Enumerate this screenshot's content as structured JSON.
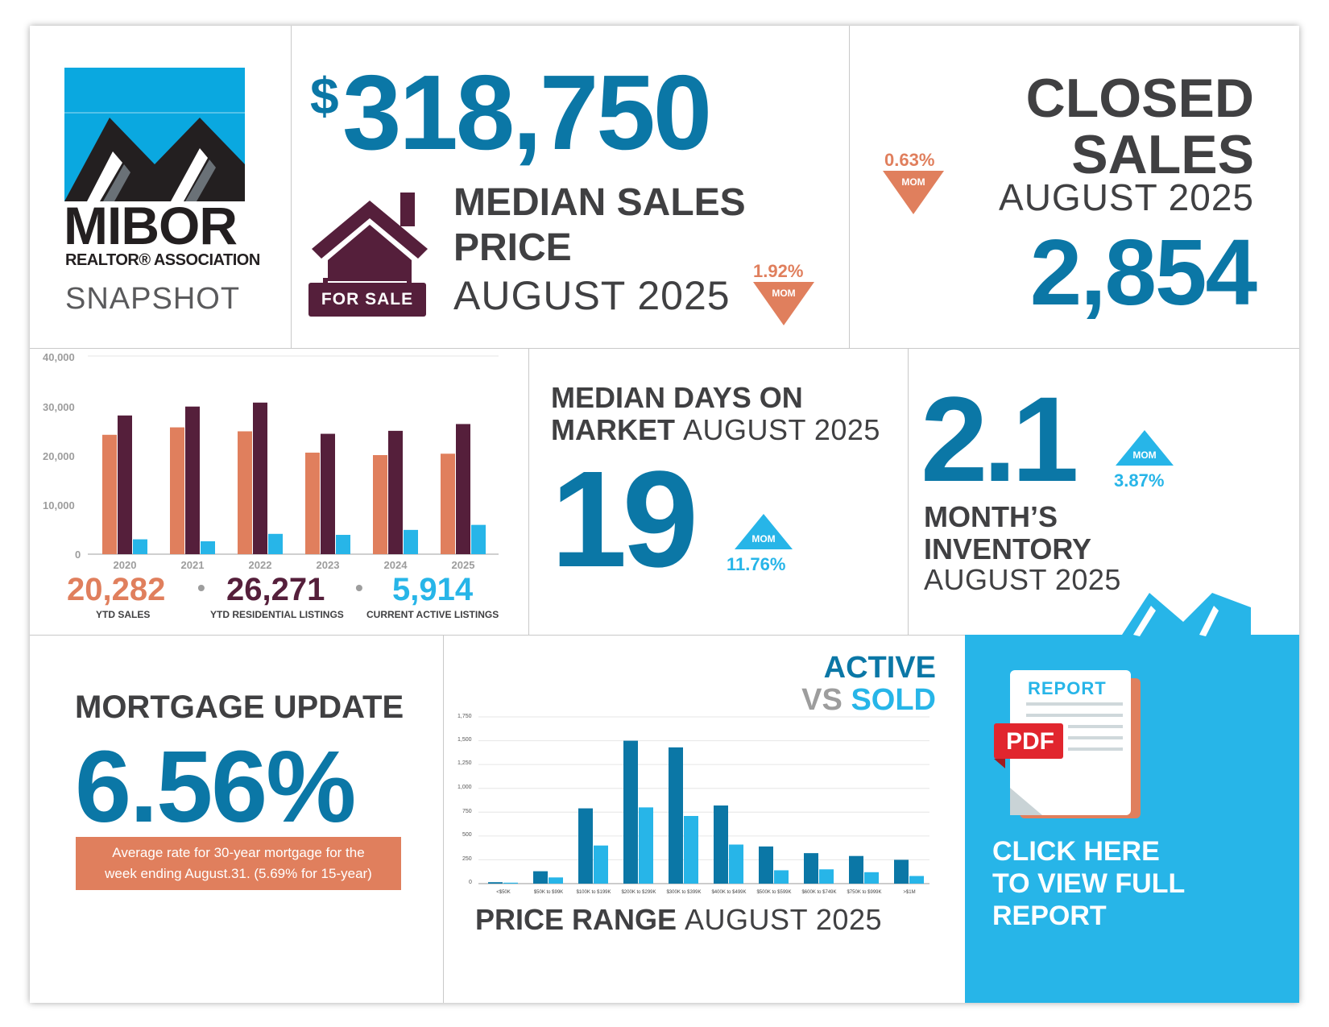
{
  "brand": {
    "logo_word": "MIBOR",
    "logo_sub": "REALTOR® ASSOCIATION",
    "snapshot_label": "SNAPSHOT"
  },
  "median_price": {
    "dollar_sign": "$",
    "value": "318,750",
    "title_line1": "MEDIAN SALES",
    "title_line2": "PRICE",
    "period": "AUGUST 2025",
    "sign_label": "FOR SALE",
    "change": "1.92%",
    "mom": "MOM",
    "direction": "down"
  },
  "closed_sales": {
    "title_line1": "CLOSED",
    "title_line2": "SALES",
    "period": "AUGUST 2025",
    "value": "2,854",
    "change": "0.63%",
    "mom": "MOM",
    "direction": "down"
  },
  "ytd_chart": {
    "y_ticks": [
      "40,000",
      "30,000",
      "20,000",
      "10,000",
      "0"
    ],
    "summary": [
      {
        "value": "20,282",
        "label": "YTD SALES"
      },
      {
        "value": "26,271",
        "label": "YTD RESIDENTIAL LISTINGS"
      },
      {
        "value": "5,914",
        "label": "CURRENT ACTIVE LISTINGS"
      }
    ],
    "separator": "•"
  },
  "days_on_market": {
    "title_line1": "MEDIAN DAYS ON",
    "title_line2_bold": "MARKET",
    "period": "AUGUST 2025",
    "value": "19",
    "change": "11.76%",
    "mom": "MOM",
    "direction": "up"
  },
  "inventory": {
    "value": "2.1",
    "title_line1": "MONTH’S",
    "title_line2": "INVENTORY",
    "period": "AUGUST 2025",
    "change": "3.87%",
    "mom": "MOM",
    "direction": "up"
  },
  "mortgage": {
    "title": "MORTGAGE UPDATE",
    "rate": "6.56%",
    "note_line1": "Average rate for 30-year mortgage for the",
    "note_line2": "week ending August.31. (5.69% for 15-year)"
  },
  "price_range": {
    "title_line1": "ACTIVE",
    "title_vs": "VS",
    "title_sold": "SOLD",
    "footer_bold": "PRICE RANGE",
    "footer_period": "AUGUST 2025",
    "y_ticks": [
      "1,750",
      "1,500",
      "1,250",
      "1,000",
      "750",
      "500",
      "250",
      "0"
    ]
  },
  "report_cta": {
    "report_label": "REPORT",
    "pdf_label": "PDF",
    "line1": "CLICK HERE",
    "line2": "TO VIEW FULL",
    "line3": "REPORT"
  },
  "colors": {
    "blue": "#0b77a6",
    "light_blue": "#27b5e8",
    "orange": "#e07f5d",
    "plum": "#551f3b",
    "dark_text": "#404042"
  },
  "chart_data": [
    {
      "type": "bar",
      "categories": [
        "2020",
        "2021",
        "2022",
        "2023",
        "2024",
        "2025"
      ],
      "series": [
        {
          "name": "YTD SALES",
          "values": [
            24100,
            25600,
            24800,
            20500,
            20000,
            20282
          ]
        },
        {
          "name": "YTD RESIDENTIAL LISTINGS",
          "values": [
            28000,
            29800,
            30600,
            24300,
            24900,
            26271
          ]
        },
        {
          "name": "CURRENT ACTIVE LISTINGS",
          "values": [
            3000,
            2600,
            4100,
            3900,
            4900,
            5914
          ]
        }
      ],
      "ylim": [
        0,
        40000
      ],
      "grid": false
    },
    {
      "type": "bar",
      "categories": [
        "<$50K",
        "$50K to $99K",
        "$100K to $199K",
        "$200K to $299K",
        "$300K to $399K",
        "$400K to $499K",
        "$500K to $599K",
        "$600K to $749K",
        "$750K to $999K",
        ">$1M"
      ],
      "series": [
        {
          "values": [
            15,
            130,
            790,
            1500,
            1430,
            820,
            390,
            320,
            290,
            250
          ]
        },
        {
          "values": [
            10,
            65,
            400,
            800,
            710,
            410,
            140,
            150,
            120,
            80
          ]
        }
      ],
      "ylim": [
        0,
        1750
      ],
      "grid": true
    }
  ]
}
